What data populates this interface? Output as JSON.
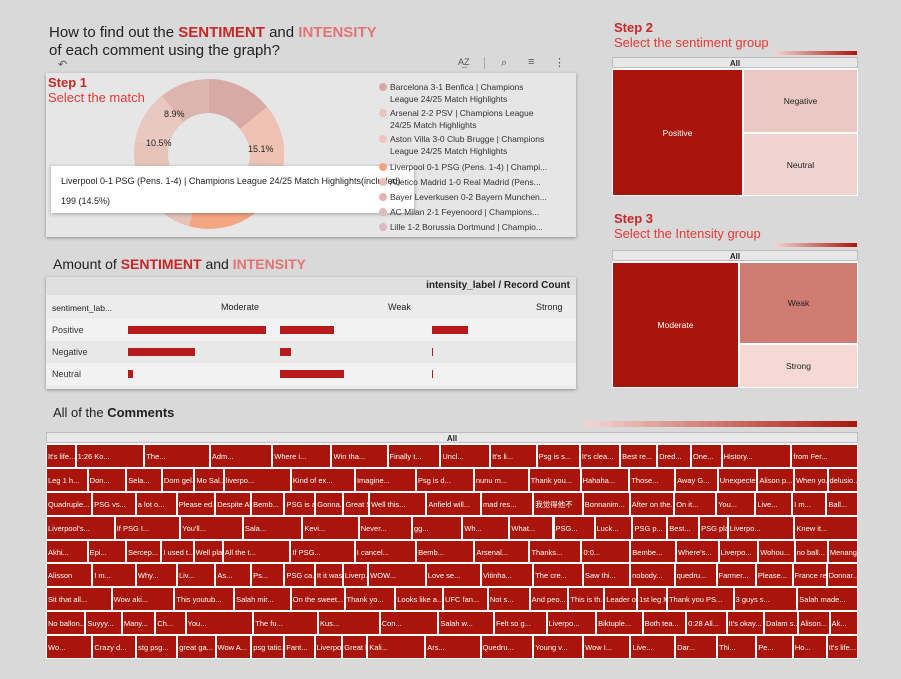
{
  "title": {
    "line1_pre": "How to find out the ",
    "line1_sent": "SENTIMENT",
    "line1_mid": " and ",
    "line1_int": "INTENSITY",
    "line2": "of each comment using the graph?"
  },
  "toolbar_icons": [
    "undo-icon",
    "sort-icon",
    "zoom-icon",
    "filter-icon",
    "more-icon"
  ],
  "step1": {
    "step": "Step 1",
    "desc": "Select the match"
  },
  "step2": {
    "step": "Step 2",
    "desc": "Select the sentiment group"
  },
  "step3": {
    "step": "Step 3",
    "desc": "Select the Intensity group"
  },
  "donut": {
    "labels": [
      "8.9%",
      "10.5%",
      "15.1%"
    ],
    "tooltip_title": "Liverpool 0-1 PSG (Pens. 1-4) | Champions League 24/25 Match Highlights(included)",
    "tooltip_value": "199 (14.5%)"
  },
  "legend": [
    {
      "text1": "Barcelona 3-1 Benfica | Champions",
      "text2": "League 24/25 Match Highlights",
      "color": "#d7a9a4"
    },
    {
      "text1": "Arsenal 2-2 PSV | Champions League",
      "text2": "24/25 Match Highlights",
      "color": "#e8c6bd"
    },
    {
      "text1": "Aston Villa 3-0 Club Brugge | Champions",
      "text2": "League 24/25 Match Highlights",
      "color": "#efc5b8"
    },
    {
      "text1": "Liverpool 0-1 PSG (Pens. 1-4) | Champi...",
      "text2": "",
      "color": "#f4a582"
    },
    {
      "text1": "Atletico Madrid 1-0 Real Madrid (Pens...",
      "text2": "",
      "color": "#e9bfb5"
    },
    {
      "text1": "Bayer Leverkusen 0-2 Bayern Munchen...",
      "text2": "",
      "color": "#e1b3ab"
    },
    {
      "text1": "AC Milan 2-1 Feyenoord | Champions...",
      "text2": "",
      "color": "#dcbcb6"
    },
    {
      "text1": "Lille 1-2 Borussia Dortmund | Champio...",
      "text2": "",
      "color": "#dcb8c4"
    }
  ],
  "amount": {
    "pre": "Amount of ",
    "sent": "SENTIMENT",
    "mid": " and ",
    "int": "INTENSITY"
  },
  "table": {
    "header": "intensity_label / Record Count",
    "row_header": "sentiment_lab...",
    "cols": [
      "Moderate",
      "Weak",
      "Strong"
    ],
    "rows": [
      {
        "label": "Positive",
        "values": [
          1.0,
          0.4,
          0.27
        ]
      },
      {
        "label": "Negative",
        "values": [
          0.5,
          0.08,
          0.01
        ]
      },
      {
        "label": "Neutral",
        "values": [
          0.04,
          0.48,
          0.01
        ]
      }
    ]
  },
  "sentiment_tree": {
    "all": "All",
    "positive": "Positive",
    "negative": "Negative",
    "neutral": "Neutral"
  },
  "intensity_tree": {
    "all": "All",
    "moderate": "Moderate",
    "weak": "Weak",
    "strong": "Strong"
  },
  "comments": {
    "title_pre": "All of the ",
    "title_bold": "Comments",
    "all": "All",
    "tiles": [
      "It's life...",
      "1:26 Ko...",
      "The...",
      "Adm...",
      "Where i...",
      "Win tha...",
      "Finally t...",
      "Uncl...",
      "It's li...",
      "Psg is s...",
      "It's clea...",
      "Best re...",
      "Dred...",
      "One...",
      "History...",
      "from Fer...",
      "Leg 1 h...",
      "Don...",
      "Sela...",
      "Dom gel...",
      "Mo Sal...",
      "liverpo...",
      "Kind of ex...",
      "Imagine...",
      "Psg is d...",
      "nunu m...",
      "Thank you...",
      "Hahaha...",
      "Those...",
      "Away G...",
      "Unexpecte...",
      "Alison p...",
      "When yo...",
      "delusio...",
      "Quadruple...",
      "PSG vs...",
      "a lot o...",
      "Please ed...",
      "Despite Alis...",
      "Bemb...",
      "PSG is a...",
      "Gonna...",
      "Great Sav...",
      "Well this...",
      "Anfield will...",
      "mad res...",
      "我觉得他不",
      "Bonnanim...",
      "After on the...",
      "On it...",
      "You...",
      "Live...",
      "I m...",
      "Ball...",
      "Liverpool's...",
      "If PSG I...",
      "You'll...",
      "Sala...",
      "Kevi...",
      "Never...",
      "gg...",
      "Wh...",
      "What...",
      "PSG...",
      "Luck...",
      "PSG p...",
      "Best...",
      "PSG played...",
      "Liverpo...",
      "Knew it...",
      "Akhi...",
      "Epi...",
      "Sercep...",
      "I used t...",
      "Well pla...",
      "All the t...",
      "If PSG...",
      "I cancel...",
      "Bemb...",
      "Arsenal...",
      "Thanks...",
      "0:0...",
      "Bembe...",
      "Where's...",
      "Liverpo...",
      "Wohou...",
      "no ball...",
      "Menang...",
      "Alisson",
      "I m...",
      "Why...",
      "Liv...",
      "As...",
      "Ps...",
      "PSG ca...",
      "It it was...",
      "Liverp...",
      "WOW...",
      "Love se...",
      "Vitinha...",
      "The cre...",
      "Saw thi...",
      "nobody...",
      "quedru...",
      "Farmer...",
      "Please...",
      "France re...",
      "Donnar...",
      "Sit that all...",
      "Wow aki...",
      "This youtub...",
      "Salah mir...",
      "On the sweet...",
      "Thank yo...",
      "Looks like a...",
      "UFC fan...",
      "Not s...",
      "And peo...",
      "This is th...",
      "Leader of gr...",
      "1st leg M...",
      "Thank you PS...",
      "3 guys s...",
      "Salah made...",
      "No ballon...",
      "Suyyy...",
      "Many...",
      "Ch...",
      "You...",
      "The fu...",
      "Kus...",
      "Con...",
      "Salah w...",
      "Felt so g...",
      "Liverpo...",
      "Biktuple...",
      "Both tea...",
      "0:28 All...",
      "It's okay...",
      "Dalam s...",
      "Alison...",
      "Ak...",
      "Wo...",
      "Crazy d...",
      "stg psg...",
      "great ga...",
      "Wow A...",
      "psg tatic...",
      "Fant...",
      "Liverpoo...",
      "Great b...",
      "Kali...",
      "Ars...",
      "Quedru...",
      "Young v...",
      "Wow I...",
      "Live...",
      "Dar...",
      "Thi...",
      "Pe...",
      "Ho..."
    ]
  }
}
